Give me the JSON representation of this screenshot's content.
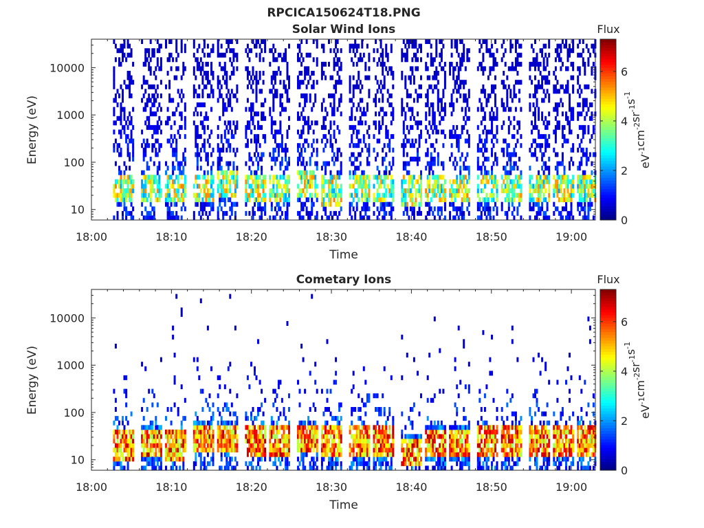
{
  "figure": {
    "title": "RPCICA150624T18.PNG"
  },
  "colors": {
    "axis": "#262626",
    "background": "#ffffff"
  },
  "colorbar": {
    "label": "Flux",
    "unit_base": "eV",
    "unit_parts": [
      {
        "t": "eV",
        "sup": "-1"
      },
      {
        "t": "cm",
        "sup": "-2"
      },
      {
        "t": "sr",
        "sup": "-1"
      },
      {
        "t": "s",
        "sup": "-1"
      }
    ],
    "unit_text": "eV-1cm-2sr-1s-1",
    "ticks": [
      "0",
      "2",
      "4",
      "6"
    ],
    "range": [
      0,
      7.3
    ],
    "colormap": "jet"
  },
  "chart_data": [
    {
      "type": "heatmap",
      "title": "Solar Wind Ions",
      "xlabel": "Time",
      "ylabel": "Energy (eV)",
      "x_ticks": [
        "18:00",
        "18:10",
        "18:20",
        "18:30",
        "18:40",
        "18:50",
        "19:00"
      ],
      "y_ticks": [
        "10",
        "100",
        "1000",
        "10000"
      ],
      "y_scale": "log",
      "ylim": [
        6,
        40000
      ],
      "xlim": [
        "18:00",
        "19:03"
      ],
      "sweep_times": [
        "18:04",
        "18:07:30",
        "18:10:30",
        "18:14",
        "18:17",
        "18:20:30",
        "18:23:30",
        "18:27",
        "18:30",
        "18:33:30",
        "18:36:30",
        "18:40",
        "18:43",
        "18:46",
        "18:49:30",
        "18:52:30",
        "18:56",
        "18:59",
        "19:02"
      ],
      "peak_energy_eV": [
        30,
        30,
        30,
        30,
        35,
        30,
        30,
        35,
        25,
        30,
        30,
        25,
        30,
        30,
        30,
        30,
        30,
        30,
        30
      ],
      "max_flux": 5.5
    },
    {
      "type": "heatmap",
      "title": "Cometary Ions",
      "xlabel": "Time",
      "ylabel": "Energy (eV)",
      "x_ticks": [
        "18:00",
        "18:10",
        "18:20",
        "18:30",
        "18:40",
        "18:50",
        "19:00"
      ],
      "y_ticks": [
        "10",
        "100",
        "1000",
        "10000"
      ],
      "y_scale": "log",
      "ylim": [
        6,
        40000
      ],
      "xlim": [
        "18:00",
        "19:03"
      ],
      "sweep_times": [
        "18:04",
        "18:07:30",
        "18:10:30",
        "18:14",
        "18:17",
        "18:20:30",
        "18:23:30",
        "18:27",
        "18:30",
        "18:33:30",
        "18:36:30",
        "18:40",
        "18:43",
        "18:46",
        "18:49:30",
        "18:52:30",
        "18:56",
        "18:59",
        "19:02"
      ],
      "peak_energy_eV": [
        20,
        22,
        20,
        30,
        30,
        25,
        25,
        30,
        25,
        25,
        25,
        15,
        22,
        22,
        25,
        25,
        25,
        25,
        25
      ],
      "max_flux": 7.0
    }
  ]
}
